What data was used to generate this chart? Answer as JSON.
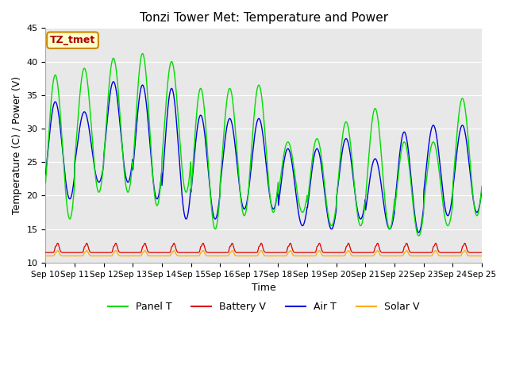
{
  "title": "Tonzi Tower Met: Temperature and Power",
  "xlabel": "Time",
  "ylabel": "Temperature (C) / Power (V)",
  "ylim": [
    10,
    45
  ],
  "yticks": [
    10,
    15,
    20,
    25,
    30,
    35,
    40,
    45
  ],
  "x_labels": [
    "Sep 10",
    "Sep 11",
    "Sep 12",
    "Sep 13",
    "Sep 14",
    "Sep 15",
    "Sep 16",
    "Sep 17",
    "Sep 18",
    "Sep 19",
    "Sep 20",
    "Sep 21",
    "Sep 22",
    "Sep 23",
    "Sep 24",
    "Sep 25"
  ],
  "bg_color": "#e8e8e8",
  "panel_t_color": "#00dd00",
  "battery_v_color": "#dd0000",
  "air_t_color": "#0000dd",
  "solar_v_color": "#ffaa00",
  "annotation_text": "TZ_tmet",
  "annotation_bg": "#ffffcc",
  "annotation_border": "#cc8800",
  "annotation_text_color": "#aa0000",
  "n_days": 15,
  "pts_per_day": 96,
  "day_peaks_panel": [
    38.0,
    39.0,
    40.5,
    41.2,
    40.0,
    36.0,
    36.0,
    36.5,
    28.0,
    28.5,
    31.0,
    33.0,
    28.0,
    28.0,
    34.5
  ],
  "day_troughs_panel": [
    16.5,
    20.5,
    20.5,
    18.5,
    20.5,
    15.0,
    17.0,
    17.5,
    17.5,
    15.5,
    15.5,
    15.0,
    14.0,
    15.5,
    17.0
  ],
  "day_peaks_air": [
    34.0,
    32.5,
    37.0,
    36.5,
    36.0,
    32.0,
    31.5,
    31.5,
    27.0,
    27.0,
    28.5,
    25.5,
    29.5,
    30.5,
    30.5
  ],
  "day_troughs_air": [
    19.5,
    22.0,
    22.0,
    19.5,
    16.5,
    16.5,
    18.0,
    18.0,
    15.5,
    15.0,
    16.5,
    15.0,
    14.5,
    17.0,
    17.5
  ],
  "battery_base": 11.5,
  "battery_spike": 1.4,
  "solar_base": 11.0,
  "solar_spike": 0.8
}
